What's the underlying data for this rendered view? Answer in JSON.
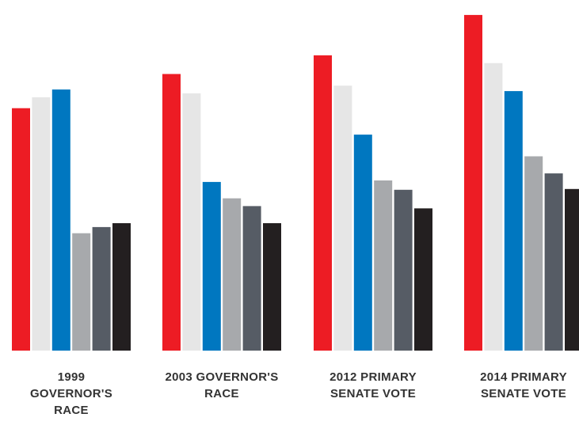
{
  "chart_data": {
    "type": "bar",
    "categories": [
      [
        "1999",
        "GOVERNOR'S",
        "RACE"
      ],
      [
        "2003 GOVERNOR'S",
        "RACE"
      ],
      [
        "2012 PRIMARY",
        "SENATE VOTE"
      ],
      [
        "2014 PRIMARY",
        "SENATE VOTE"
      ]
    ],
    "series_colors": [
      "#ed1c24",
      "#e6e6e6",
      "#0077c0",
      "#a7a9ac",
      "#565c65",
      "#231f20"
    ],
    "values": [
      [
        312,
        326,
        336,
        151,
        159,
        164
      ],
      [
        356,
        331,
        217,
        196,
        186,
        164
      ],
      [
        380,
        341,
        278,
        219,
        207,
        183
      ],
      [
        432,
        370,
        334,
        250,
        228,
        208
      ]
    ],
    "ylim": [
      0,
      440
    ],
    "title": "",
    "xlabel": "",
    "ylabel": "",
    "grid": false,
    "legend": "none"
  }
}
